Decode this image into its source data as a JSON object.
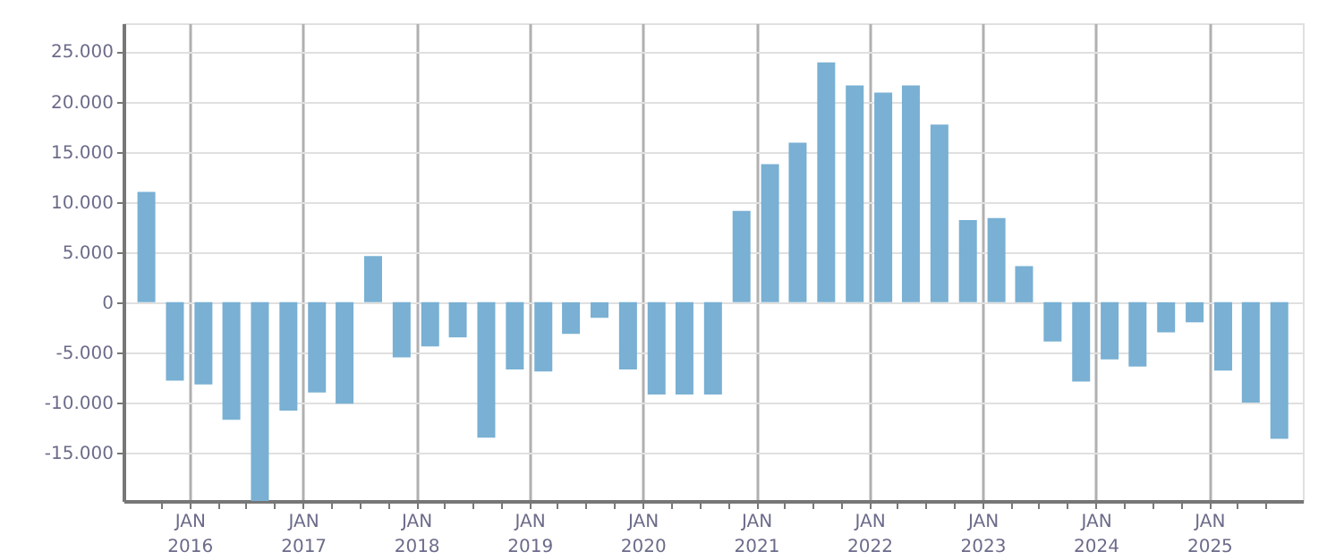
{
  "chart_data": {
    "type": "bar",
    "color": "#79b0d3",
    "x": [
      "2015-08-15",
      "2015-11-15",
      "2016-02-15",
      "2016-05-15",
      "2016-08-15",
      "2016-11-15",
      "2017-02-15",
      "2017-05-15",
      "2017-08-15",
      "2017-11-15",
      "2018-02-15",
      "2018-05-15",
      "2018-08-15",
      "2018-11-15",
      "2019-02-15",
      "2019-05-15",
      "2019-08-15",
      "2019-11-15",
      "2020-02-15",
      "2020-05-15",
      "2020-08-15",
      "2020-11-15",
      "2021-02-15",
      "2021-05-15",
      "2021-08-15",
      "2021-11-15",
      "2022-02-15",
      "2022-05-15",
      "2022-08-15",
      "2022-11-15",
      "2023-02-15",
      "2023-05-15",
      "2023-08-15",
      "2023-11-15",
      "2024-02-15",
      "2024-05-15",
      "2024-08-15",
      "2024-11-15",
      "2025-02-15",
      "2025-05-15",
      "2025-08-15"
    ],
    "values": [
      11000,
      -7800,
      -8200,
      -11700,
      -19800,
      -10800,
      -9000,
      -10100,
      4600,
      -5500,
      -4400,
      -3500,
      -13500,
      -6700,
      -6900,
      -3150,
      -1550,
      -6700,
      -9200,
      -9200,
      -9200,
      9100,
      13750,
      15900,
      23900,
      21600,
      20900,
      21600,
      17700,
      8200,
      8400,
      3600,
      -3900,
      -7900,
      -5700,
      -6400,
      -3000,
      -2000,
      -6800,
      -10000,
      -13600
    ],
    "xlim": [
      "2015-07-01",
      "2025-10-01"
    ],
    "xticks": [
      {
        "value": "2015-10-01",
        "label": null
      },
      {
        "value": "2016-01-01",
        "label": "JAN 2016"
      },
      {
        "value": "2016-04-01",
        "label": null
      },
      {
        "value": "2016-07-01",
        "label": null
      },
      {
        "value": "2016-10-01",
        "label": null
      },
      {
        "value": "2017-01-01",
        "label": "JAN 2017"
      },
      {
        "value": "2017-04-01",
        "label": null
      },
      {
        "value": "2017-07-01",
        "label": null
      },
      {
        "value": "2017-10-01",
        "label": null
      },
      {
        "value": "2018-01-01",
        "label": "JAN 2018"
      },
      {
        "value": "2018-04-01",
        "label": null
      },
      {
        "value": "2018-07-01",
        "label": null
      },
      {
        "value": "2018-10-01",
        "label": null
      },
      {
        "value": "2019-01-01",
        "label": "JAN 2019"
      },
      {
        "value": "2019-04-01",
        "label": null
      },
      {
        "value": "2019-07-01",
        "label": null
      },
      {
        "value": "2019-10-01",
        "label": null
      },
      {
        "value": "2020-01-01",
        "label": "JAN 2020"
      },
      {
        "value": "2020-04-01",
        "label": null
      },
      {
        "value": "2020-07-01",
        "label": null
      },
      {
        "value": "2020-10-01",
        "label": null
      },
      {
        "value": "2021-01-01",
        "label": "JAN 2021"
      },
      {
        "value": "2021-04-01",
        "label": null
      },
      {
        "value": "2021-07-01",
        "label": null
      },
      {
        "value": "2021-10-01",
        "label": null
      },
      {
        "value": "2022-01-01",
        "label": "JAN 2022"
      },
      {
        "value": "2022-04-01",
        "label": null
      },
      {
        "value": "2022-07-01",
        "label": null
      },
      {
        "value": "2022-10-01",
        "label": null
      },
      {
        "value": "2023-01-01",
        "label": "JAN 2023"
      },
      {
        "value": "2023-04-01",
        "label": null
      },
      {
        "value": "2023-07-01",
        "label": null
      },
      {
        "value": "2023-10-01",
        "label": null
      },
      {
        "value": "2024-01-01",
        "label": "JAN 2024"
      },
      {
        "value": "2024-04-01",
        "label": null
      },
      {
        "value": "2024-07-01",
        "label": null
      },
      {
        "value": "2024-10-01",
        "label": null
      },
      {
        "value": "2025-01-01",
        "label": "JAN 2025"
      },
      {
        "value": "2025-04-01",
        "label": null
      },
      {
        "value": "2025-07-01",
        "label": null
      }
    ],
    "ylim": [
      -19800,
      27800
    ],
    "yticks": [
      {
        "value": -15000,
        "label": "-15.000"
      },
      {
        "value": -10000,
        "label": "-10.000"
      },
      {
        "value": -5000,
        "label": "-5.000"
      },
      0,
      {
        "value": 5000,
        "label": "5.000"
      },
      {
        "value": 10000,
        "label": "10.000"
      },
      {
        "value": 15000,
        "label": "15.000"
      },
      {
        "value": 20000,
        "label": "20.000"
      },
      {
        "value": 25000,
        "label": "25.000"
      }
    ],
    "grid": true
  }
}
